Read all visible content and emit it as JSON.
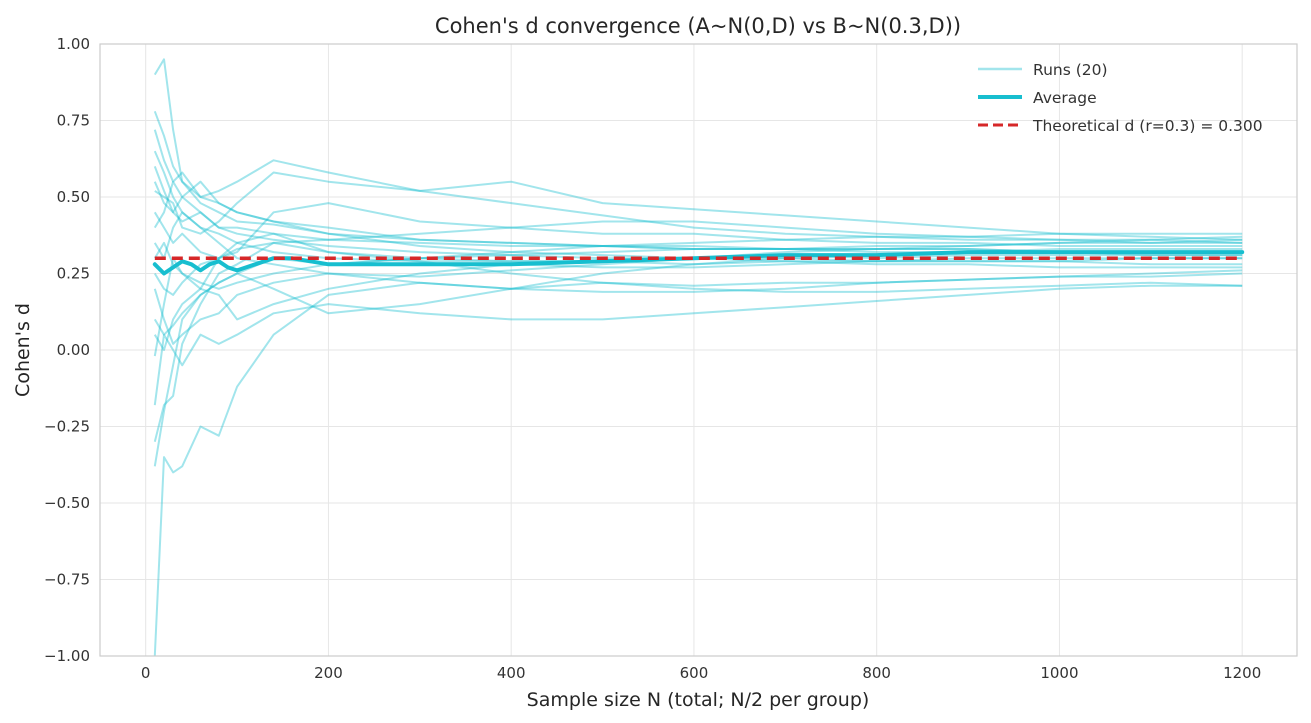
{
  "chart_data": {
    "type": "line",
    "title": "Cohen's d convergence (A~N(0,D) vs B~N(0.3,D))",
    "xlabel": "Sample size N (total; N/2 per group)",
    "ylabel": "Cohen's d",
    "xlim": [
      -50,
      1260
    ],
    "ylim": [
      -1.0,
      1.0
    ],
    "x_ticks": [
      0,
      200,
      400,
      600,
      800,
      1000,
      1200
    ],
    "x_tick_labels": [
      "0",
      "200",
      "400",
      "600",
      "800",
      "1000",
      "1200"
    ],
    "y_ticks": [
      -1.0,
      -0.75,
      -0.5,
      -0.25,
      0.0,
      0.25,
      0.5,
      0.75,
      1.0
    ],
    "y_tick_labels": [
      "−1.00",
      "−0.75",
      "−0.50",
      "−0.25",
      "0.00",
      "0.25",
      "0.50",
      "0.75",
      "1.00"
    ],
    "grid": true,
    "legend_position": "top-right",
    "legend": [
      "Runs (20)",
      "Average",
      "Theoretical d (r=0.3) = 0.300"
    ],
    "colors": {
      "runs": "#17becf",
      "average": "#17becf",
      "theoretical": "#d62728",
      "grid": "#e6e6e6",
      "spine": "#cccccc"
    },
    "runs_x": [
      10,
      20,
      30,
      40,
      60,
      80,
      100,
      140,
      200,
      300,
      400,
      500,
      600,
      700,
      800,
      900,
      1000,
      1100,
      1200
    ],
    "runs": [
      [
        0.9,
        0.95,
        0.72,
        0.55,
        0.48,
        0.45,
        0.42,
        0.41,
        0.38,
        0.36,
        0.35,
        0.34,
        0.34,
        0.33,
        0.33,
        0.33,
        0.32,
        0.32,
        0.32
      ],
      [
        -1.0,
        -0.35,
        -0.4,
        -0.38,
        -0.25,
        -0.28,
        -0.12,
        0.05,
        0.18,
        0.22,
        0.2,
        0.22,
        0.21,
        0.22,
        0.22,
        0.23,
        0.24,
        0.25,
        0.26
      ],
      [
        0.72,
        0.62,
        0.55,
        0.58,
        0.5,
        0.52,
        0.55,
        0.62,
        0.58,
        0.52,
        0.55,
        0.48,
        0.46,
        0.44,
        0.42,
        0.4,
        0.38,
        0.37,
        0.36
      ],
      [
        -0.3,
        -0.18,
        -0.15,
        0.02,
        0.15,
        0.25,
        0.28,
        0.35,
        0.32,
        0.3,
        0.29,
        0.29,
        0.3,
        0.31,
        0.3,
        0.31,
        0.31,
        0.31,
        0.31
      ],
      [
        0.55,
        0.48,
        0.45,
        0.5,
        0.45,
        0.4,
        0.4,
        0.38,
        0.32,
        0.29,
        0.25,
        0.22,
        0.2,
        0.19,
        0.19,
        0.2,
        0.21,
        0.22,
        0.21
      ],
      [
        0.1,
        0.05,
        0.08,
        0.12,
        0.18,
        0.22,
        0.25,
        0.3,
        0.28,
        0.3,
        0.31,
        0.32,
        0.33,
        0.33,
        0.34,
        0.34,
        0.35,
        0.35,
        0.36
      ],
      [
        0.65,
        0.58,
        0.5,
        0.45,
        0.4,
        0.35,
        0.3,
        0.28,
        0.25,
        0.22,
        0.2,
        0.19,
        0.19,
        0.2,
        0.22,
        0.23,
        0.24,
        0.24,
        0.25
      ],
      [
        -0.02,
        0.15,
        0.3,
        0.25,
        0.2,
        0.18,
        0.1,
        0.15,
        0.2,
        0.25,
        0.28,
        0.27,
        0.27,
        0.28,
        0.29,
        0.29,
        0.29,
        0.3,
        0.3
      ],
      [
        0.45,
        0.4,
        0.35,
        0.38,
        0.32,
        0.3,
        0.33,
        0.35,
        0.36,
        0.38,
        0.4,
        0.42,
        0.42,
        0.4,
        0.38,
        0.37,
        0.36,
        0.36,
        0.35
      ],
      [
        0.25,
        0.2,
        0.18,
        0.22,
        0.28,
        0.3,
        0.32,
        0.45,
        0.48,
        0.42,
        0.4,
        0.38,
        0.38,
        0.36,
        0.35,
        0.35,
        0.34,
        0.34,
        0.34
      ],
      [
        0.4,
        0.45,
        0.55,
        0.5,
        0.55,
        0.48,
        0.45,
        0.42,
        0.4,
        0.36,
        0.35,
        0.34,
        0.33,
        0.33,
        0.32,
        0.32,
        0.32,
        0.31,
        0.31
      ],
      [
        -0.18,
        0.05,
        0.0,
        -0.05,
        0.05,
        0.02,
        0.05,
        0.12,
        0.15,
        0.12,
        0.1,
        0.1,
        0.12,
        0.14,
        0.16,
        0.18,
        0.2,
        0.21,
        0.21
      ],
      [
        0.35,
        0.3,
        0.4,
        0.45,
        0.4,
        0.38,
        0.35,
        0.32,
        0.3,
        0.29,
        0.29,
        0.29,
        0.28,
        0.29,
        0.29,
        0.3,
        0.3,
        0.3,
        0.3
      ],
      [
        0.78,
        0.7,
        0.6,
        0.55,
        0.5,
        0.48,
        0.45,
        0.42,
        0.38,
        0.34,
        0.32,
        0.31,
        0.3,
        0.29,
        0.28,
        0.28,
        0.27,
        0.27,
        0.27
      ],
      [
        0.2,
        0.1,
        0.02,
        0.05,
        0.1,
        0.12,
        0.18,
        0.22,
        0.25,
        0.24,
        0.26,
        0.28,
        0.3,
        0.32,
        0.33,
        0.34,
        0.35,
        0.36,
        0.37
      ],
      [
        0.52,
        0.5,
        0.48,
        0.4,
        0.38,
        0.42,
        0.48,
        0.58,
        0.55,
        0.52,
        0.48,
        0.44,
        0.4,
        0.38,
        0.37,
        0.36,
        0.36,
        0.35,
        0.35
      ],
      [
        -0.38,
        -0.2,
        -0.05,
        0.1,
        0.18,
        0.22,
        0.25,
        0.2,
        0.12,
        0.15,
        0.2,
        0.25,
        0.28,
        0.3,
        0.31,
        0.32,
        0.33,
        0.33,
        0.33
      ],
      [
        0.6,
        0.52,
        0.45,
        0.42,
        0.45,
        0.4,
        0.38,
        0.36,
        0.34,
        0.32,
        0.31,
        0.3,
        0.3,
        0.3,
        0.29,
        0.29,
        0.29,
        0.28,
        0.28
      ],
      [
        0.3,
        0.35,
        0.28,
        0.25,
        0.22,
        0.2,
        0.22,
        0.25,
        0.28,
        0.3,
        0.32,
        0.34,
        0.35,
        0.36,
        0.37,
        0.37,
        0.38,
        0.38,
        0.38
      ],
      [
        0.05,
        0.0,
        0.1,
        0.15,
        0.2,
        0.3,
        0.35,
        0.38,
        0.36,
        0.35,
        0.34,
        0.34,
        0.33,
        0.33,
        0.33,
        0.33,
        0.32,
        0.32,
        0.32
      ]
    ],
    "average": {
      "x": [
        10,
        20,
        30,
        40,
        50,
        60,
        70,
        80,
        90,
        100,
        120,
        140,
        160,
        200,
        300,
        400,
        500,
        600,
        700,
        800,
        900,
        1000,
        1100,
        1200
      ],
      "y": [
        0.28,
        0.25,
        0.27,
        0.29,
        0.28,
        0.26,
        0.28,
        0.29,
        0.27,
        0.26,
        0.28,
        0.3,
        0.3,
        0.28,
        0.28,
        0.28,
        0.29,
        0.3,
        0.31,
        0.31,
        0.32,
        0.32,
        0.32,
        0.32
      ]
    },
    "theoretical_d": 0.3
  }
}
